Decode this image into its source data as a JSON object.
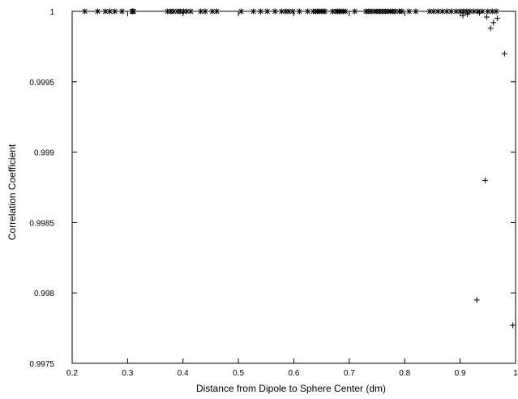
{
  "chart_data": {
    "type": "scatter",
    "title": "",
    "xlabel": "Distance from Dipole to Sphere Center (dm)",
    "ylabel": "Correlation Coefficient",
    "xlim": [
      0.2,
      1.0
    ],
    "ylim": [
      0.9975,
      1.0
    ],
    "x_ticks": [
      "0.2",
      "0.3",
      "0.4",
      "0.5",
      "0.6",
      "0.7",
      "0.8",
      "0.9",
      "1"
    ],
    "y_ticks": [
      "0.9975",
      "0.998",
      "0.9985",
      "0.999",
      "0.9995",
      "1"
    ],
    "grid": false,
    "legend": "none",
    "series": [
      {
        "marker": "asterisk",
        "points": [
          [
            0.223,
            1.0
          ],
          [
            0.246,
            1.0
          ],
          [
            0.26,
            1.0
          ],
          [
            0.268,
            1.0
          ],
          [
            0.277,
            1.0
          ],
          [
            0.29,
            1.0
          ],
          [
            0.308,
            1.0
          ],
          [
            0.309,
            1.0
          ],
          [
            0.311,
            1.0
          ],
          [
            0.372,
            1.0
          ],
          [
            0.378,
            1.0
          ],
          [
            0.383,
            1.0
          ],
          [
            0.39,
            1.0
          ],
          [
            0.395,
            1.0
          ],
          [
            0.401,
            1.0
          ],
          [
            0.407,
            1.0
          ],
          [
            0.414,
            1.0
          ],
          [
            0.432,
            1.0
          ],
          [
            0.44,
            1.0
          ],
          [
            0.453,
            1.0
          ],
          [
            0.461,
            1.0
          ],
          [
            0.505,
            1.0
          ],
          [
            0.527,
            1.0
          ],
          [
            0.54,
            1.0
          ],
          [
            0.552,
            1.0
          ],
          [
            0.566,
            1.0
          ],
          [
            0.578,
            1.0
          ],
          [
            0.585,
            1.0
          ],
          [
            0.591,
            1.0
          ],
          [
            0.598,
            1.0
          ],
          [
            0.61,
            1.0
          ],
          [
            0.625,
            1.0
          ],
          [
            0.635,
            1.0
          ],
          [
            0.64,
            1.0
          ],
          [
            0.643,
            1.0
          ],
          [
            0.646,
            1.0
          ],
          [
            0.65,
            1.0
          ],
          [
            0.653,
            1.0
          ],
          [
            0.656,
            1.0
          ],
          [
            0.67,
            1.0
          ],
          [
            0.676,
            1.0
          ],
          [
            0.679,
            1.0
          ],
          [
            0.682,
            1.0
          ],
          [
            0.685,
            1.0
          ],
          [
            0.689,
            1.0
          ],
          [
            0.693,
            1.0
          ],
          [
            0.71,
            1.0
          ],
          [
            0.73,
            1.0
          ],
          [
            0.735,
            1.0
          ],
          [
            0.74,
            1.0
          ],
          [
            0.746,
            1.0
          ],
          [
            0.75,
            1.0
          ],
          [
            0.755,
            1.0
          ],
          [
            0.76,
            1.0
          ],
          [
            0.765,
            1.0
          ],
          [
            0.77,
            1.0
          ],
          [
            0.774,
            1.0
          ],
          [
            0.778,
            1.0
          ],
          [
            0.783,
            1.0
          ],
          [
            0.79,
            1.0
          ],
          [
            0.795,
            1.0
          ],
          [
            0.808,
            1.0
          ],
          [
            0.82,
            1.0
          ],
          [
            0.845,
            1.0
          ],
          [
            0.852,
            1.0
          ],
          [
            0.86,
            1.0
          ],
          [
            0.868,
            1.0
          ],
          [
            0.876,
            1.0
          ],
          [
            0.884,
            1.0
          ],
          [
            0.893,
            1.0
          ],
          [
            0.9,
            1.0
          ],
          [
            0.906,
            1.0
          ],
          [
            0.912,
            1.0
          ],
          [
            0.918,
            1.0
          ],
          [
            0.925,
            1.0
          ],
          [
            0.932,
            1.0
          ],
          [
            0.94,
            1.0
          ],
          [
            0.95,
            1.0
          ],
          [
            0.958,
            1.0
          ],
          [
            0.965,
            1.0
          ]
        ]
      },
      {
        "marker": "plus",
        "points": [
          [
            0.905,
            0.99997
          ],
          [
            0.913,
            0.99998
          ],
          [
            0.935,
            0.99999
          ],
          [
            0.948,
            0.99996
          ],
          [
            0.955,
            0.99988
          ],
          [
            0.96,
            0.99992
          ],
          [
            0.967,
            0.99995
          ],
          [
            0.98,
            0.9997
          ],
          [
            0.945,
            0.9988
          ],
          [
            0.93,
            0.99795
          ],
          [
            0.995,
            0.99777
          ]
        ]
      }
    ]
  }
}
